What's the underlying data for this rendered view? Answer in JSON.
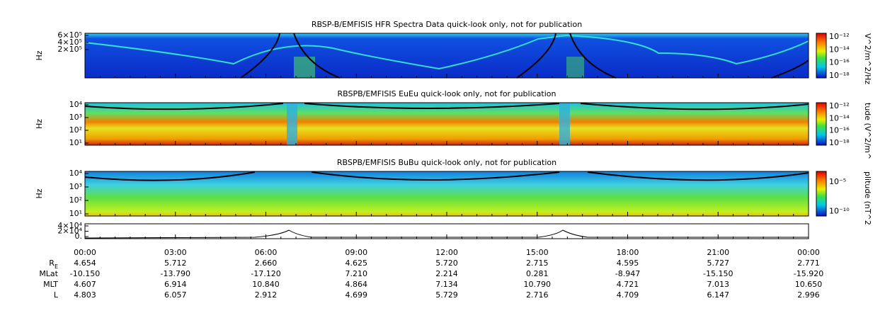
{
  "panels": [
    {
      "title": "RBSP-B/EMFISIS  HFR Spectra Data quick-look only, not for publication",
      "ylabel": "Hz",
      "yticks": [
        "6×10⁵",
        "4×10⁵",
        "2×10⁵"
      ],
      "cbar_label": "V^2/m^2/Hz",
      "cbar_ticks": [
        "10⁻¹²",
        "10⁻¹⁴",
        "10⁻¹⁶",
        "10⁻¹⁸"
      ]
    },
    {
      "title": "RBSPB/EMFISIS  EuEu quick-look only, not for publication",
      "ylabel": "Hz",
      "yticks": [
        "10⁴",
        "10³",
        "10²",
        "10¹"
      ],
      "cbar_label": "tude (V^2/m^",
      "cbar_ticks": [
        "10⁻¹²",
        "10⁻¹⁴",
        "10⁻¹⁶",
        "10⁻¹⁸"
      ]
    },
    {
      "title": "RBSPB/EMFISIS  BuBu quick-look only, not for publication",
      "ylabel": "Hz",
      "yticks": [
        "10⁴",
        "10³",
        "10²",
        "10¹"
      ],
      "cbar_label": "plitude (nT^2",
      "cbar_ticks": [
        "10⁻⁵",
        "10⁻¹⁰"
      ]
    },
    {
      "yticks": [
        "4×10⁴",
        "2×10⁴",
        "0."
      ]
    }
  ],
  "times": [
    "00:00",
    "03:00",
    "06:00",
    "09:00",
    "12:00",
    "15:00",
    "18:00",
    "21:00",
    "00:00"
  ],
  "ephemeris": [
    {
      "label": "R",
      "label_sub": "E",
      "values": [
        "4.654",
        "5.712",
        "2.660",
        "4.625",
        "5.720",
        "2.715",
        "4.595",
        "5.727",
        "2.771"
      ]
    },
    {
      "label": "MLat",
      "values": [
        "-10.150",
        "-13.790",
        "-17.120",
        "7.210",
        "2.214",
        "0.281",
        "-8.947",
        "-15.150",
        "-15.920"
      ]
    },
    {
      "label": "MLT",
      "values": [
        "4.607",
        "6.914",
        "10.840",
        "4.864",
        "7.134",
        "10.790",
        "4.721",
        "7.013",
        "10.650"
      ]
    },
    {
      "label": "L",
      "values": [
        "4.803",
        "6.057",
        "2.912",
        "4.699",
        "5.729",
        "2.716",
        "4.709",
        "6.147",
        "2.996"
      ]
    }
  ]
}
